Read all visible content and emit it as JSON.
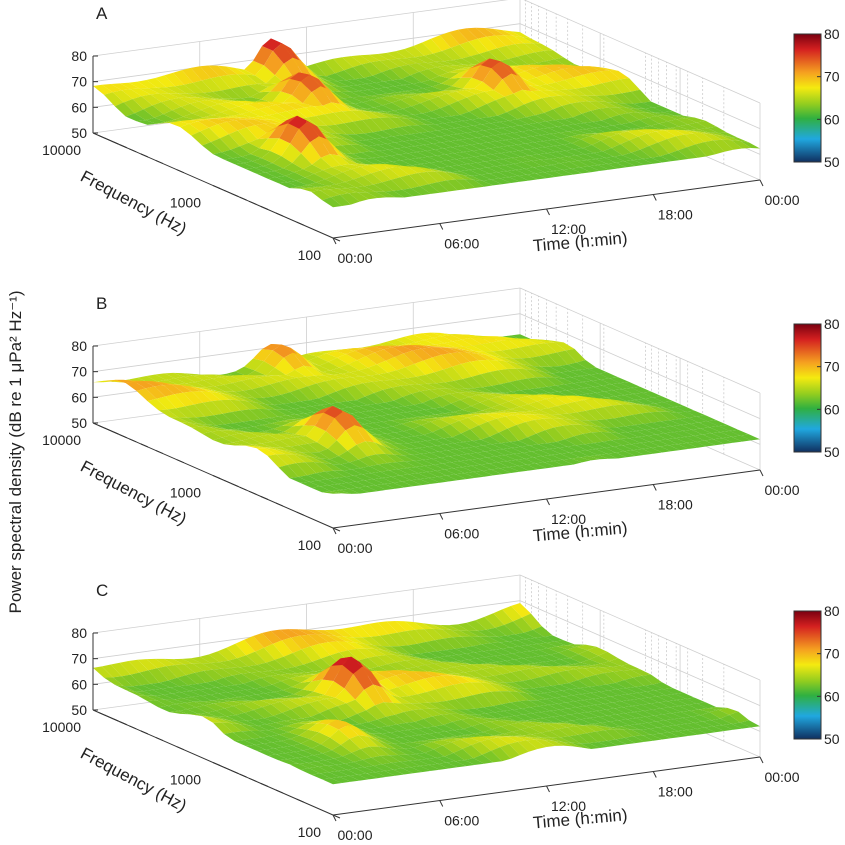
{
  "figure": {
    "y_axis_label": "Power spectral density (dB re 1 μPa² Hz⁻¹)"
  },
  "chart_data": [
    {
      "type": "surface",
      "panel_label": "A",
      "xlabel": "Time (h:min)",
      "zlabel_axis": "Frequency (Hz)",
      "x_ticks": [
        "00:00",
        "06:00",
        "12:00",
        "18:00",
        "00:00"
      ],
      "freq_ticks": [
        "10000",
        "1000",
        "100"
      ],
      "z_ticks": [
        "80",
        "70",
        "60",
        "50"
      ],
      "zlim": [
        50,
        80
      ],
      "colorbar": {
        "ticks": [
          "80",
          "70",
          "60",
          "50"
        ],
        "range": [
          50,
          80
        ]
      },
      "peaks": [
        {
          "time": "03:30",
          "freq_hz": 600,
          "level_db": 78
        },
        {
          "time": "08:30",
          "freq_hz": 3000,
          "level_db": 76
        },
        {
          "time": "10:00",
          "freq_hz": 9000,
          "level_db": 78
        },
        {
          "time": "18:00",
          "freq_hz": 2000,
          "level_db": 76
        }
      ]
    },
    {
      "type": "surface",
      "panel_label": "B",
      "xlabel": "Time (h:min)",
      "zlabel_axis": "Frequency (Hz)",
      "x_ticks": [
        "00:00",
        "06:00",
        "12:00",
        "18:00",
        "00:00"
      ],
      "freq_ticks": [
        "10000",
        "1000",
        "100"
      ],
      "z_ticks": [
        "80",
        "70",
        "60",
        "50"
      ],
      "zlim": [
        50,
        80
      ],
      "colorbar": {
        "ticks": [
          "80",
          "70",
          "60",
          "50"
        ],
        "range": [
          50,
          80
        ]
      },
      "peaks": [
        {
          "time": "05:30",
          "freq_hz": 600,
          "level_db": 76
        },
        {
          "time": "10:00",
          "freq_hz": 8000,
          "level_db": 73
        }
      ]
    },
    {
      "type": "surface",
      "panel_label": "C",
      "xlabel": "Time (h:min)",
      "zlabel_axis": "Frequency (Hz)",
      "x_ticks": [
        "00:00",
        "06:00",
        "12:00",
        "18:00",
        "00:00"
      ],
      "freq_ticks": [
        "10000",
        "1000",
        "100"
      ],
      "z_ticks": [
        "80",
        "70",
        "60",
        "50"
      ],
      "zlim": [
        50,
        80
      ],
      "colorbar": {
        "ticks": [
          "80",
          "70",
          "60",
          "50"
        ],
        "range": [
          50,
          80
        ]
      },
      "peaks": [
        {
          "time": "09:00",
          "freq_hz": 1500,
          "level_db": 79
        },
        {
          "time": "04:30",
          "freq_hz": 400,
          "level_db": 70
        }
      ]
    }
  ]
}
